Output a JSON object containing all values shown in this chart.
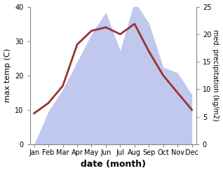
{
  "months": [
    "Jan",
    "Feb",
    "Mar",
    "Apr",
    "May",
    "Jun",
    "Jul",
    "Aug",
    "Sep",
    "Oct",
    "Nov",
    "Dec"
  ],
  "month_indices": [
    0,
    1,
    2,
    3,
    4,
    5,
    6,
    7,
    8,
    9,
    10,
    11
  ],
  "temperature": [
    9,
    12,
    17,
    29,
    33,
    34,
    32,
    35,
    27,
    20,
    15,
    10
  ],
  "precipitation_mm": [
    0,
    6,
    10,
    15,
    20,
    24,
    17,
    26,
    22,
    14,
    13,
    9
  ],
  "temp_color": "#993333",
  "precip_color": "#c0c8ee",
  "ylim_left": [
    0,
    40
  ],
  "ylim_right": [
    0,
    25
  ],
  "yticks_left": [
    0,
    10,
    20,
    30,
    40
  ],
  "yticks_right": [
    0,
    5,
    10,
    15,
    20,
    25
  ],
  "xlabel": "date (month)",
  "ylabel_left": "max temp (C)",
  "ylabel_right": "med. precipitation (kg/m2)",
  "temp_linewidth": 2.0,
  "fig_bg": "#ffffff",
  "axes_bg": "#ffffff"
}
